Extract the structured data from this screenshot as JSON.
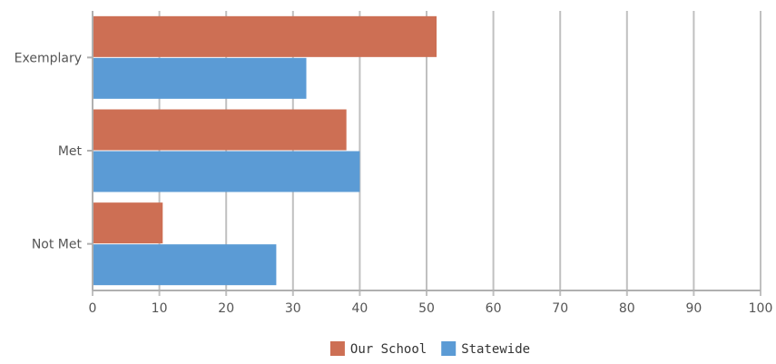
{
  "chart_data": {
    "type": "bar",
    "orientation": "horizontal",
    "categories": [
      "Exemplary",
      "Met",
      "Not Met"
    ],
    "series": [
      {
        "name": "Our School",
        "color": "#cd6f54",
        "values": [
          51.5,
          38,
          10.5
        ]
      },
      {
        "name": "Statewide",
        "color": "#5b9bd5",
        "values": [
          32,
          40,
          27.5
        ]
      }
    ],
    "xlim": [
      0,
      100
    ],
    "x_ticks": [
      "0",
      "10",
      "20",
      "30",
      "40",
      "50",
      "60",
      "70",
      "80",
      "90",
      "100"
    ],
    "grid": true,
    "legend_position": "bottom-center",
    "title": "",
    "xlabel": "",
    "ylabel": ""
  }
}
